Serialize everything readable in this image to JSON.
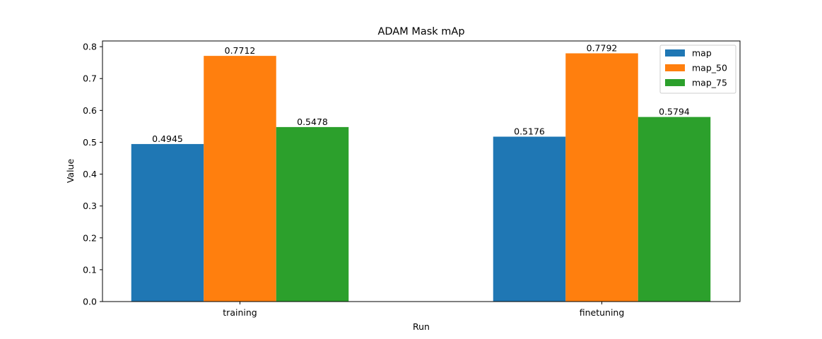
{
  "chart_data": {
    "type": "bar",
    "title": "ADAM Mask mAp",
    "xlabel": "Run",
    "ylabel": "Value",
    "categories": [
      "training",
      "finetuning"
    ],
    "series": [
      {
        "name": "map",
        "values": [
          0.4945,
          0.5176
        ],
        "labels": [
          "0.4945",
          "0.5176"
        ],
        "color": "#1f77b4"
      },
      {
        "name": "map_50",
        "values": [
          0.7712,
          0.7792
        ],
        "labels": [
          "0.7712",
          "0.7792"
        ],
        "color": "#ff7f0e"
      },
      {
        "name": "map_75",
        "values": [
          0.5478,
          0.5794
        ],
        "labels": [
          "0.5478",
          "0.5794"
        ],
        "color": "#2ca02c"
      }
    ],
    "ylim": [
      0,
      0.818
    ],
    "yticks": [
      0.0,
      0.1,
      0.2,
      0.3,
      0.4,
      0.5,
      0.6,
      0.7,
      0.8
    ],
    "ytick_labels": [
      "0.0",
      "0.1",
      "0.2",
      "0.3",
      "0.4",
      "0.5",
      "0.6",
      "0.7",
      "0.8"
    ],
    "grid": false,
    "legend_position": "top-right"
  }
}
